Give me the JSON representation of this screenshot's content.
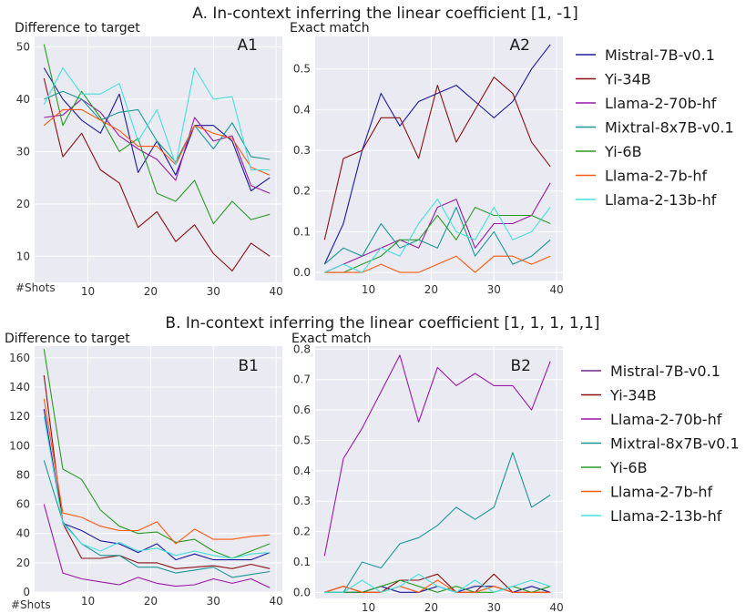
{
  "sections": [
    {
      "title": "A. In-context inferring the linear coefficient [1, -1]"
    },
    {
      "title": "B. In-context inferring the linear coefficient [1, 1, 1, 1,1]"
    }
  ],
  "colors": {
    "Mistral-7B-v0.1": "#1a1aa0",
    "Yi-34B": "#8b1010",
    "Llama-2-70b-hf": "#9a18a8",
    "Mixtral-8x7B-v0.1": "#1a9696",
    "Yi-6B": "#2a9a26",
    "Llama-2-7b-hf": "#ff5a10",
    "Llama-2-13b-hf": "#44e0dc",
    "plot_bg": "#eaeaf2",
    "grid": "#ffffff"
  },
  "chart_data": [
    {
      "id": "A1",
      "type": "line",
      "panel_label": "A1",
      "title": "",
      "ylabel": "Difference to target",
      "xlabel_text": "#Shots",
      "xlim": [
        1.5,
        41
      ],
      "ylim": [
        5,
        52
      ],
      "xticks": [
        10,
        20,
        30,
        40
      ],
      "yticks": [
        10,
        20,
        30,
        40,
        50
      ],
      "x": [
        3,
        6,
        9,
        12,
        15,
        18,
        21,
        24,
        27,
        30,
        33,
        36,
        39
      ],
      "series": [
        {
          "name": "Mistral-7B-v0.1",
          "values": [
            46,
            40,
            36,
            33.5,
            41,
            26,
            32,
            25.5,
            35,
            35,
            32,
            22.5,
            25
          ]
        },
        {
          "name": "Yi-34B",
          "values": [
            44,
            29,
            33.5,
            26.5,
            24,
            15.5,
            18.5,
            12.8,
            16,
            10.5,
            7.2,
            12.5,
            10
          ]
        },
        {
          "name": "Llama-2-70b-hf",
          "values": [
            36.5,
            37,
            40,
            37.5,
            33,
            30.5,
            28.5,
            24.5,
            36.5,
            32,
            33,
            23.5,
            22
          ]
        },
        {
          "name": "Mixtral-8x7B-v0.1",
          "values": [
            40,
            41.5,
            40,
            36,
            37.5,
            38,
            32,
            28,
            35,
            30.5,
            35.5,
            29,
            28.5
          ]
        },
        {
          "name": "Yi-6B",
          "values": [
            50.5,
            35,
            41.5,
            36.5,
            30,
            32.5,
            22,
            20.5,
            24.5,
            16.2,
            20.5,
            17,
            18
          ]
        },
        {
          "name": "Llama-2-7b-hf",
          "values": [
            35,
            38,
            38,
            36,
            34,
            31,
            31,
            27.5,
            35,
            33.5,
            32.5,
            27,
            25.5
          ]
        },
        {
          "name": "Llama-2-13b-hf",
          "values": [
            39,
            46,
            41,
            41,
            43,
            32,
            38,
            27.5,
            46,
            40,
            40.5,
            26.5,
            26.5
          ]
        }
      ]
    },
    {
      "id": "A2",
      "type": "line",
      "panel_label": "A2",
      "title": "",
      "ylabel": "Exact match",
      "xlabel_text": "",
      "xlim": [
        1.5,
        41
      ],
      "ylim": [
        -0.02,
        0.58
      ],
      "xticks": [
        10,
        20,
        30,
        40
      ],
      "yticks": [
        0.0,
        0.1,
        0.2,
        0.3,
        0.4,
        0.5
      ],
      "x": [
        3,
        6,
        9,
        12,
        15,
        18,
        21,
        24,
        27,
        30,
        33,
        36,
        39
      ],
      "series": [
        {
          "name": "Mistral-7B-v0.1",
          "values": [
            0.02,
            0.12,
            0.3,
            0.44,
            0.36,
            0.42,
            0.44,
            0.46,
            0.42,
            0.38,
            0.42,
            0.5,
            0.56
          ]
        },
        {
          "name": "Yi-34B",
          "values": [
            0.08,
            0.28,
            0.3,
            0.38,
            0.38,
            0.28,
            0.46,
            0.32,
            0.4,
            0.48,
            0.44,
            0.32,
            0.26
          ]
        },
        {
          "name": "Llama-2-70b-hf",
          "values": [
            0.0,
            0.02,
            0.04,
            0.06,
            0.08,
            0.06,
            0.16,
            0.18,
            0.06,
            0.12,
            0.12,
            0.14,
            0.22
          ]
        },
        {
          "name": "Mixtral-8x7B-v0.1",
          "values": [
            0.02,
            0.06,
            0.04,
            0.12,
            0.06,
            0.08,
            0.06,
            0.16,
            0.04,
            0.1,
            0.02,
            0.04,
            0.08
          ]
        },
        {
          "name": "Yi-6B",
          "values": [
            0.0,
            0.0,
            0.02,
            0.04,
            0.08,
            0.08,
            0.14,
            0.08,
            0.16,
            0.14,
            0.14,
            0.14,
            0.12
          ]
        },
        {
          "name": "Llama-2-7b-hf",
          "values": [
            0.0,
            0.0,
            0.0,
            0.02,
            0.0,
            0.0,
            0.02,
            0.04,
            0.0,
            0.04,
            0.04,
            0.02,
            0.04
          ]
        },
        {
          "name": "Llama-2-13b-hf",
          "values": [
            0.0,
            0.02,
            0.0,
            0.06,
            0.04,
            0.12,
            0.18,
            0.1,
            0.08,
            0.16,
            0.08,
            0.1,
            0.16
          ]
        }
      ]
    },
    {
      "id": "B1",
      "type": "line",
      "panel_label": "B1",
      "title": "",
      "ylabel": "Difference to target",
      "xlabel_text": "#Shots",
      "xlim": [
        1.5,
        41
      ],
      "ylim": [
        0,
        168
      ],
      "xticks": [
        10,
        20,
        30,
        40
      ],
      "yticks": [
        0,
        20,
        40,
        60,
        80,
        100,
        120,
        140,
        160
      ],
      "x": [
        3,
        6,
        9,
        12,
        15,
        18,
        21,
        24,
        27,
        30,
        33,
        36,
        39
      ],
      "series": [
        {
          "name": "Mistral-7B-v0.1",
          "values": [
            125,
            47,
            42,
            35,
            33,
            27,
            33,
            22,
            26,
            22,
            22,
            22,
            27
          ]
        },
        {
          "name": "Yi-34B",
          "values": [
            148,
            47,
            23,
            23,
            25,
            20,
            20,
            16,
            17,
            18,
            16,
            19,
            16
          ]
        },
        {
          "name": "Llama-2-70b-hf",
          "values": [
            60,
            13,
            9,
            7,
            5,
            10,
            6,
            4,
            5,
            9,
            6,
            9,
            3
          ]
        },
        {
          "name": "Mixtral-8x7B-v0.1",
          "values": [
            90,
            48,
            33,
            25,
            25,
            17,
            17,
            13,
            15,
            17,
            10,
            12,
            14
          ]
        },
        {
          "name": "Yi-6B",
          "values": [
            166,
            84,
            77,
            56,
            45,
            40,
            41,
            34,
            36,
            28,
            23,
            28,
            33
          ]
        },
        {
          "name": "Llama-2-7b-hf",
          "values": [
            132,
            54,
            51,
            45,
            42,
            42,
            48,
            33,
            43,
            36,
            36,
            38,
            39
          ]
        },
        {
          "name": "Llama-2-13b-hf",
          "values": [
            120,
            47,
            33,
            28,
            34,
            28,
            30,
            25,
            28,
            25,
            23,
            26,
            27
          ]
        }
      ]
    },
    {
      "id": "B2",
      "type": "line",
      "panel_label": "B2",
      "title": "",
      "ylabel": "Exact match",
      "xlabel_text": "",
      "xlim": [
        1.5,
        41
      ],
      "ylim": [
        -0.02,
        0.81
      ],
      "xticks": [
        10,
        20,
        30,
        40
      ],
      "yticks": [
        0.0,
        0.1,
        0.2,
        0.3,
        0.4,
        0.5,
        0.6,
        0.7,
        0.8
      ],
      "x": [
        3,
        6,
        9,
        12,
        15,
        18,
        21,
        24,
        27,
        30,
        33,
        36,
        39
      ],
      "series": [
        {
          "name": "Mistral-7B-v0.1",
          "values": [
            0.0,
            0.0,
            0.0,
            0.02,
            0.0,
            0.0,
            0.02,
            0.0,
            0.02,
            0.02,
            0.0,
            0.02,
            0.0
          ]
        },
        {
          "name": "Yi-34B",
          "values": [
            0.0,
            0.02,
            0.0,
            0.0,
            0.04,
            0.04,
            0.06,
            0.0,
            0.0,
            0.06,
            0.0,
            0.0,
            0.0
          ]
        },
        {
          "name": "Llama-2-70b-hf",
          "values": [
            0.12,
            0.44,
            0.54,
            0.66,
            0.78,
            0.56,
            0.74,
            0.68,
            0.72,
            0.68,
            0.68,
            0.6,
            0.76
          ]
        },
        {
          "name": "Mixtral-8x7B-v0.1",
          "values": [
            0.0,
            0.0,
            0.1,
            0.08,
            0.16,
            0.18,
            0.22,
            0.28,
            0.24,
            0.28,
            0.46,
            0.28,
            0.32
          ]
        },
        {
          "name": "Yi-6B",
          "values": [
            0.0,
            0.0,
            0.0,
            0.02,
            0.04,
            0.02,
            0.0,
            0.02,
            0.0,
            0.0,
            0.02,
            0.0,
            0.02
          ]
        },
        {
          "name": "Llama-2-7b-hf",
          "values": [
            0.0,
            0.02,
            0.0,
            0.0,
            0.02,
            0.0,
            0.04,
            0.0,
            0.0,
            0.02,
            0.0,
            0.0,
            0.0
          ]
        },
        {
          "name": "Llama-2-13b-hf",
          "values": [
            0.0,
            0.0,
            0.04,
            0.0,
            0.02,
            0.06,
            0.02,
            0.0,
            0.04,
            0.0,
            0.02,
            0.04,
            0.02
          ]
        }
      ]
    }
  ],
  "legends": [
    {
      "id": "A",
      "placement": "right of A2",
      "entries": [
        "Mistral-7B-v0.1",
        "Yi-34B",
        "Llama-2-70b-hf",
        "Mixtral-8x7B-v0.1",
        "Yi-6B",
        "Llama-2-7b-hf",
        "Llama-2-13b-hf"
      ]
    },
    {
      "id": "B",
      "placement": "right of B2",
      "entries": [
        "Mistral-7B-v0.1",
        "Yi-34B",
        "Llama-2-70b-hf",
        "Mixtral-8x7B-v0.1",
        "Yi-6B",
        "Llama-2-7b-hf",
        "Llama-2-13b-hf"
      ]
    }
  ],
  "legend_colors_B": {
    "Mistral-7B-v0.1": "#6a2a8a",
    "Yi-34B": "#8b1010",
    "Llama-2-70b-hf": "#9a18a8",
    "Mixtral-8x7B-v0.1": "#1a9696",
    "Yi-6B": "#2a9a26",
    "Llama-2-7b-hf": "#ff5a10",
    "Llama-2-13b-hf": "#44e0dc"
  }
}
